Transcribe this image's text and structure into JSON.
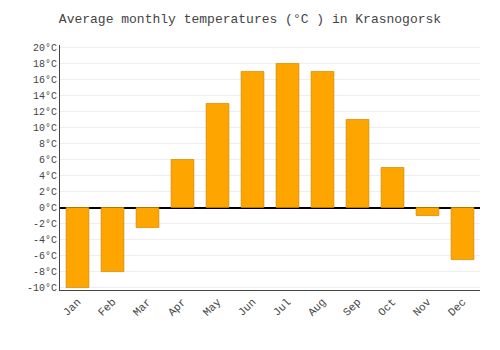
{
  "chart_data": {
    "type": "bar",
    "title": "Average monthly temperatures (°C ) in Krasnogorsk",
    "categories": [
      "Jan",
      "Feb",
      "Mar",
      "Apr",
      "May",
      "Jun",
      "Jul",
      "Aug",
      "Sep",
      "Oct",
      "Nov",
      "Dec"
    ],
    "values": [
      -10,
      -8,
      -2.5,
      6,
      13,
      17,
      18,
      17,
      11,
      5,
      -1,
      -6.5
    ],
    "color": "#FFA500",
    "ylim": [
      -10.3,
      20.3
    ],
    "yticks": [
      {
        "value": -10,
        "label": "-10°C"
      },
      {
        "value": -8,
        "label": "-8°C"
      },
      {
        "value": -6,
        "label": "-6°C"
      },
      {
        "value": -4,
        "label": "-4°C"
      },
      {
        "value": -2,
        "label": "-2°C"
      },
      {
        "value": 0,
        "label": "0°C"
      },
      {
        "value": 2,
        "label": "2°C"
      },
      {
        "value": 4,
        "label": "4°C"
      },
      {
        "value": 6,
        "label": "6°C"
      },
      {
        "value": 8,
        "label": "8°C"
      },
      {
        "value": 10,
        "label": "10°C"
      },
      {
        "value": 12,
        "label": "12°C"
      },
      {
        "value": 14,
        "label": "14°C"
      },
      {
        "value": 16,
        "label": "16°C"
      },
      {
        "value": 18,
        "label": "18°C"
      },
      {
        "value": 20,
        "label": "20°C"
      }
    ],
    "grid": true
  }
}
